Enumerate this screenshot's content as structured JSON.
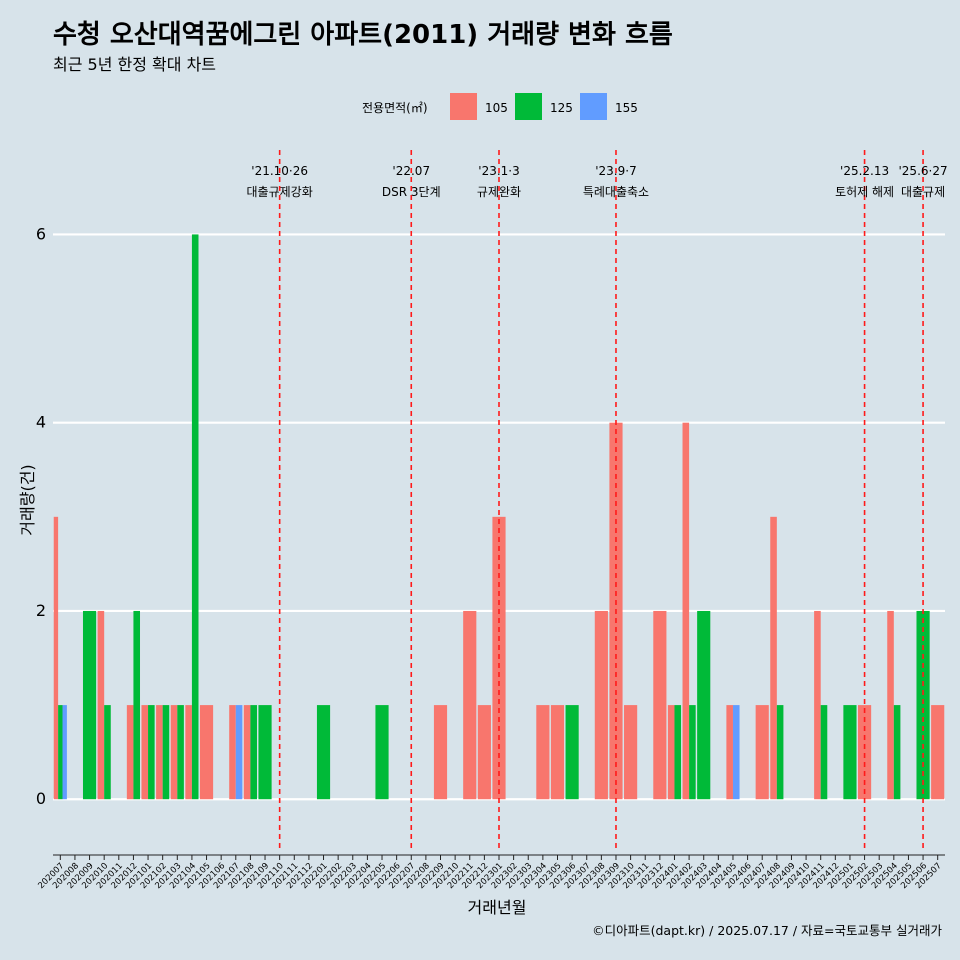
{
  "chart_data": {
    "type": "bar",
    "title": "수청 오산대역꿈에그린 아파트(2011) 거래량 변화 흐름",
    "subtitle": "최근 5년 한정 확대 차트",
    "xlabel": "거래년월",
    "ylabel": "거래량(건)",
    "ylim": [
      -0.55,
      6.95
    ],
    "yticks": [
      0,
      2,
      4,
      6
    ],
    "grid": "horizontal",
    "legend": {
      "title": "전용면적(㎡)",
      "placement": "top"
    },
    "caption": "©디아파트(dapt.kr) / 2025.07.17 / 자료=국토교통부 실거래가",
    "categories": [
      "202007",
      "202008",
      "202009",
      "202010",
      "202011",
      "202012",
      "202101",
      "202102",
      "202103",
      "202104",
      "202105",
      "202106",
      "202107",
      "202108",
      "202109",
      "202110",
      "202111",
      "202112",
      "202201",
      "202202",
      "202203",
      "202204",
      "202205",
      "202206",
      "202207",
      "202208",
      "202209",
      "202210",
      "202211",
      "202212",
      "202301",
      "202302",
      "202303",
      "202304",
      "202305",
      "202306",
      "202307",
      "202308",
      "202309",
      "202310",
      "202311",
      "202312",
      "202401",
      "202402",
      "202403",
      "202404",
      "202405",
      "202406",
      "202407",
      "202408",
      "202409",
      "202410",
      "202411",
      "202412",
      "202501",
      "202502",
      "202503",
      "202504",
      "202505",
      "202506",
      "202507"
    ],
    "series": [
      {
        "name": "105",
        "color": "#f8766d",
        "values": [
          3,
          0,
          0,
          2,
          0,
          1,
          1,
          1,
          1,
          1,
          1,
          0,
          1,
          1,
          0,
          0,
          0,
          0,
          0,
          0,
          0,
          0,
          0,
          0,
          0,
          0,
          1,
          0,
          2,
          1,
          3,
          0,
          0,
          1,
          1,
          0,
          0,
          2,
          4,
          1,
          0,
          2,
          1,
          4,
          0,
          0,
          1,
          0,
          1,
          3,
          0,
          0,
          2,
          0,
          0,
          1,
          0,
          2,
          0,
          0,
          1
        ]
      },
      {
        "name": "125",
        "color": "#00ba38",
        "values": [
          1,
          0,
          2,
          1,
          0,
          2,
          1,
          1,
          1,
          6,
          0,
          0,
          0,
          1,
          1,
          0,
          0,
          0,
          1,
          0,
          0,
          0,
          1,
          0,
          0,
          0,
          0,
          0,
          0,
          0,
          0,
          0,
          0,
          0,
          0,
          1,
          0,
          0,
          0,
          0,
          0,
          0,
          1,
          1,
          2,
          0,
          0,
          0,
          0,
          1,
          0,
          0,
          1,
          0,
          1,
          0,
          0,
          1,
          0,
          2,
          0
        ]
      },
      {
        "name": "155",
        "color": "#619cff",
        "values": [
          1,
          0,
          0,
          0,
          0,
          0,
          0,
          0,
          0,
          0,
          0,
          0,
          1,
          0,
          0,
          0,
          0,
          0,
          0,
          0,
          0,
          0,
          0,
          0,
          0,
          0,
          0,
          0,
          0,
          0,
          0,
          0,
          0,
          0,
          0,
          0,
          0,
          0,
          0,
          0,
          0,
          0,
          0,
          0,
          0,
          0,
          1,
          0,
          0,
          0,
          0,
          0,
          0,
          0,
          0,
          0,
          0,
          0,
          0,
          0,
          0
        ]
      }
    ],
    "events": [
      {
        "date_label": "'21.10·26",
        "desc": "대출규제강화",
        "x": "202110"
      },
      {
        "date_label": "'22.07",
        "desc": "DSR 3단계",
        "x": "202207"
      },
      {
        "date_label": "'23.1·3",
        "desc": "규제완화",
        "x": "202301"
      },
      {
        "date_label": "'23.9·7",
        "desc": "특례대출축소",
        "x": "202309"
      },
      {
        "date_label": "'25.2.13",
        "desc": "토허제 해제",
        "x": "202502"
      },
      {
        "date_label": "'25.6·27",
        "desc": "대출규제",
        "x": "202506"
      }
    ]
  }
}
